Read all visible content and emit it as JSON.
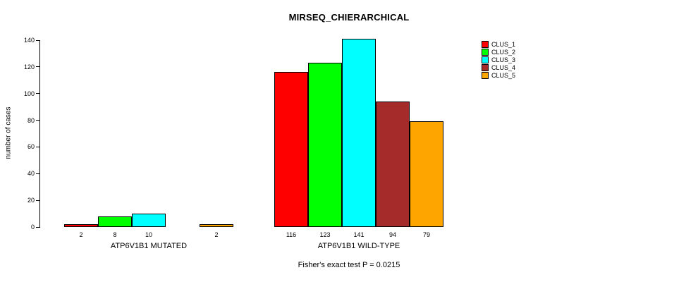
{
  "chart_data": {
    "type": "bar",
    "title": "MIRSEQ_CHIERARCHICAL",
    "ylabel": "number of cases",
    "footnote": "Fisher's exact test P = 0.0215",
    "ylim": [
      0,
      140
    ],
    "yticks": [
      0,
      20,
      40,
      60,
      80,
      100,
      120,
      140
    ],
    "series": [
      "CLUS_1",
      "CLUS_2",
      "CLUS_3",
      "CLUS_4",
      "CLUS_5"
    ],
    "colors": [
      "#FF0000",
      "#00FF00",
      "#00FFFF",
      "#A52A2A",
      "#FFA500"
    ],
    "legend_position": "topright",
    "grid": false,
    "groups": [
      {
        "label": "ATP6V1B1 MUTATED",
        "values": [
          2,
          8,
          10,
          0,
          2
        ],
        "value_labels": [
          "2",
          "8",
          "10",
          "",
          "2"
        ]
      },
      {
        "label": "ATP6V1B1 WILD-TYPE",
        "values": [
          116,
          123,
          141,
          94,
          79
        ],
        "value_labels": [
          "116",
          "123",
          "141",
          "94",
          "79"
        ]
      }
    ]
  }
}
